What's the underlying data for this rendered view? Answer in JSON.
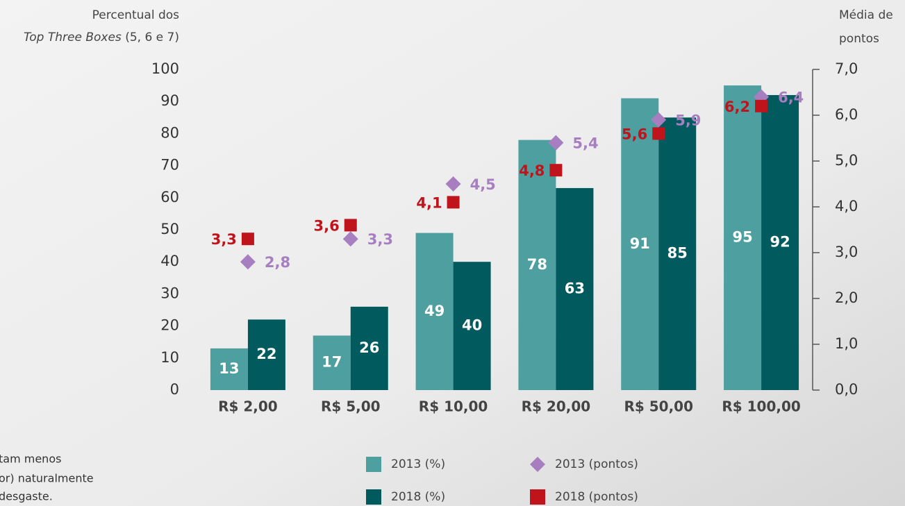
{
  "chart_data": {
    "type": "bar",
    "ylabel": [
      "Percentual dos",
      "Top Three Boxes",
      "(5, 6 e 7)"
    ],
    "y2label": [
      "Média de",
      "pontos"
    ],
    "categories": [
      "R$ 2,00",
      "R$ 5,00",
      "R$ 10,00",
      "R$ 20,00",
      "R$ 50,00",
      "R$ 100,00"
    ],
    "series": [
      {
        "name": "2013 (%)",
        "color": "#4e9fa0",
        "values": [
          13,
          17,
          49,
          78,
          91,
          95
        ]
      },
      {
        "name": "2018 (%)",
        "color": "#005a5e",
        "values": [
          22,
          26,
          40,
          63,
          85,
          92
        ]
      },
      {
        "name": "2013 (pontos)",
        "color": "#a77fc0",
        "axis": "y2",
        "marker": "diamond",
        "values": [
          2.8,
          3.3,
          4.5,
          5.4,
          5.9,
          6.4
        ],
        "value_labels": [
          "2,8",
          "3,3",
          "4,5",
          "5,4",
          "5,9",
          "6,4"
        ]
      },
      {
        "name": "2018 (pontos)",
        "color": "#c0141d",
        "axis": "y2",
        "marker": "square",
        "values": [
          3.3,
          3.6,
          4.1,
          4.8,
          5.6,
          6.2
        ],
        "value_labels": [
          "3,3",
          "3,6",
          "4,1",
          "4,8",
          "5,6",
          "6,2"
        ]
      }
    ],
    "ylim": [
      0,
      100
    ],
    "yticks": [
      0,
      10,
      20,
      30,
      40,
      50,
      60,
      70,
      80,
      90,
      100
    ],
    "y2lim": [
      0,
      7
    ],
    "y2ticks": [
      {
        "value": 0,
        "label": "0,0"
      },
      {
        "value": 1,
        "label": "1,0"
      },
      {
        "value": 2,
        "label": "2,0"
      },
      {
        "value": 3,
        "label": "3,0"
      },
      {
        "value": 4,
        "label": "4,0"
      },
      {
        "value": 5,
        "label": "5,0"
      },
      {
        "value": 6,
        "label": "6,0"
      },
      {
        "value": 7,
        "label": "7,0"
      }
    ],
    "annotation": [
      "tam menos",
      "or) naturalmente",
      "desgaste."
    ]
  }
}
